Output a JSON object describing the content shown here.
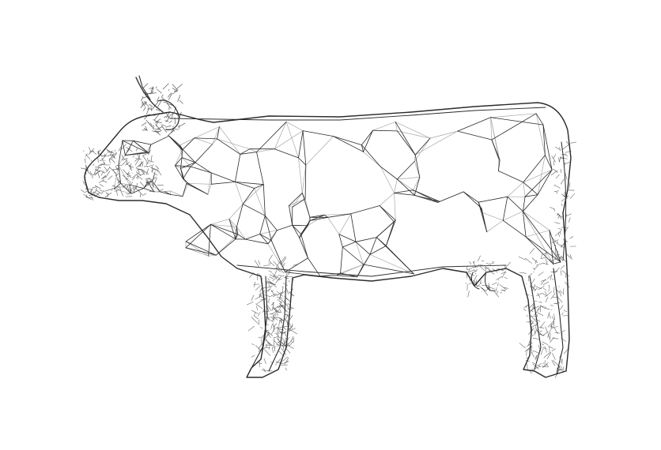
{
  "scene": {
    "subject_icon": "cow-wireframe",
    "background_color": "#ffffff",
    "colors": {
      "dark_edge": "#2b2b2b",
      "light_edge": "#a8a8a8",
      "dense_region": "#5a5a5a"
    }
  }
}
